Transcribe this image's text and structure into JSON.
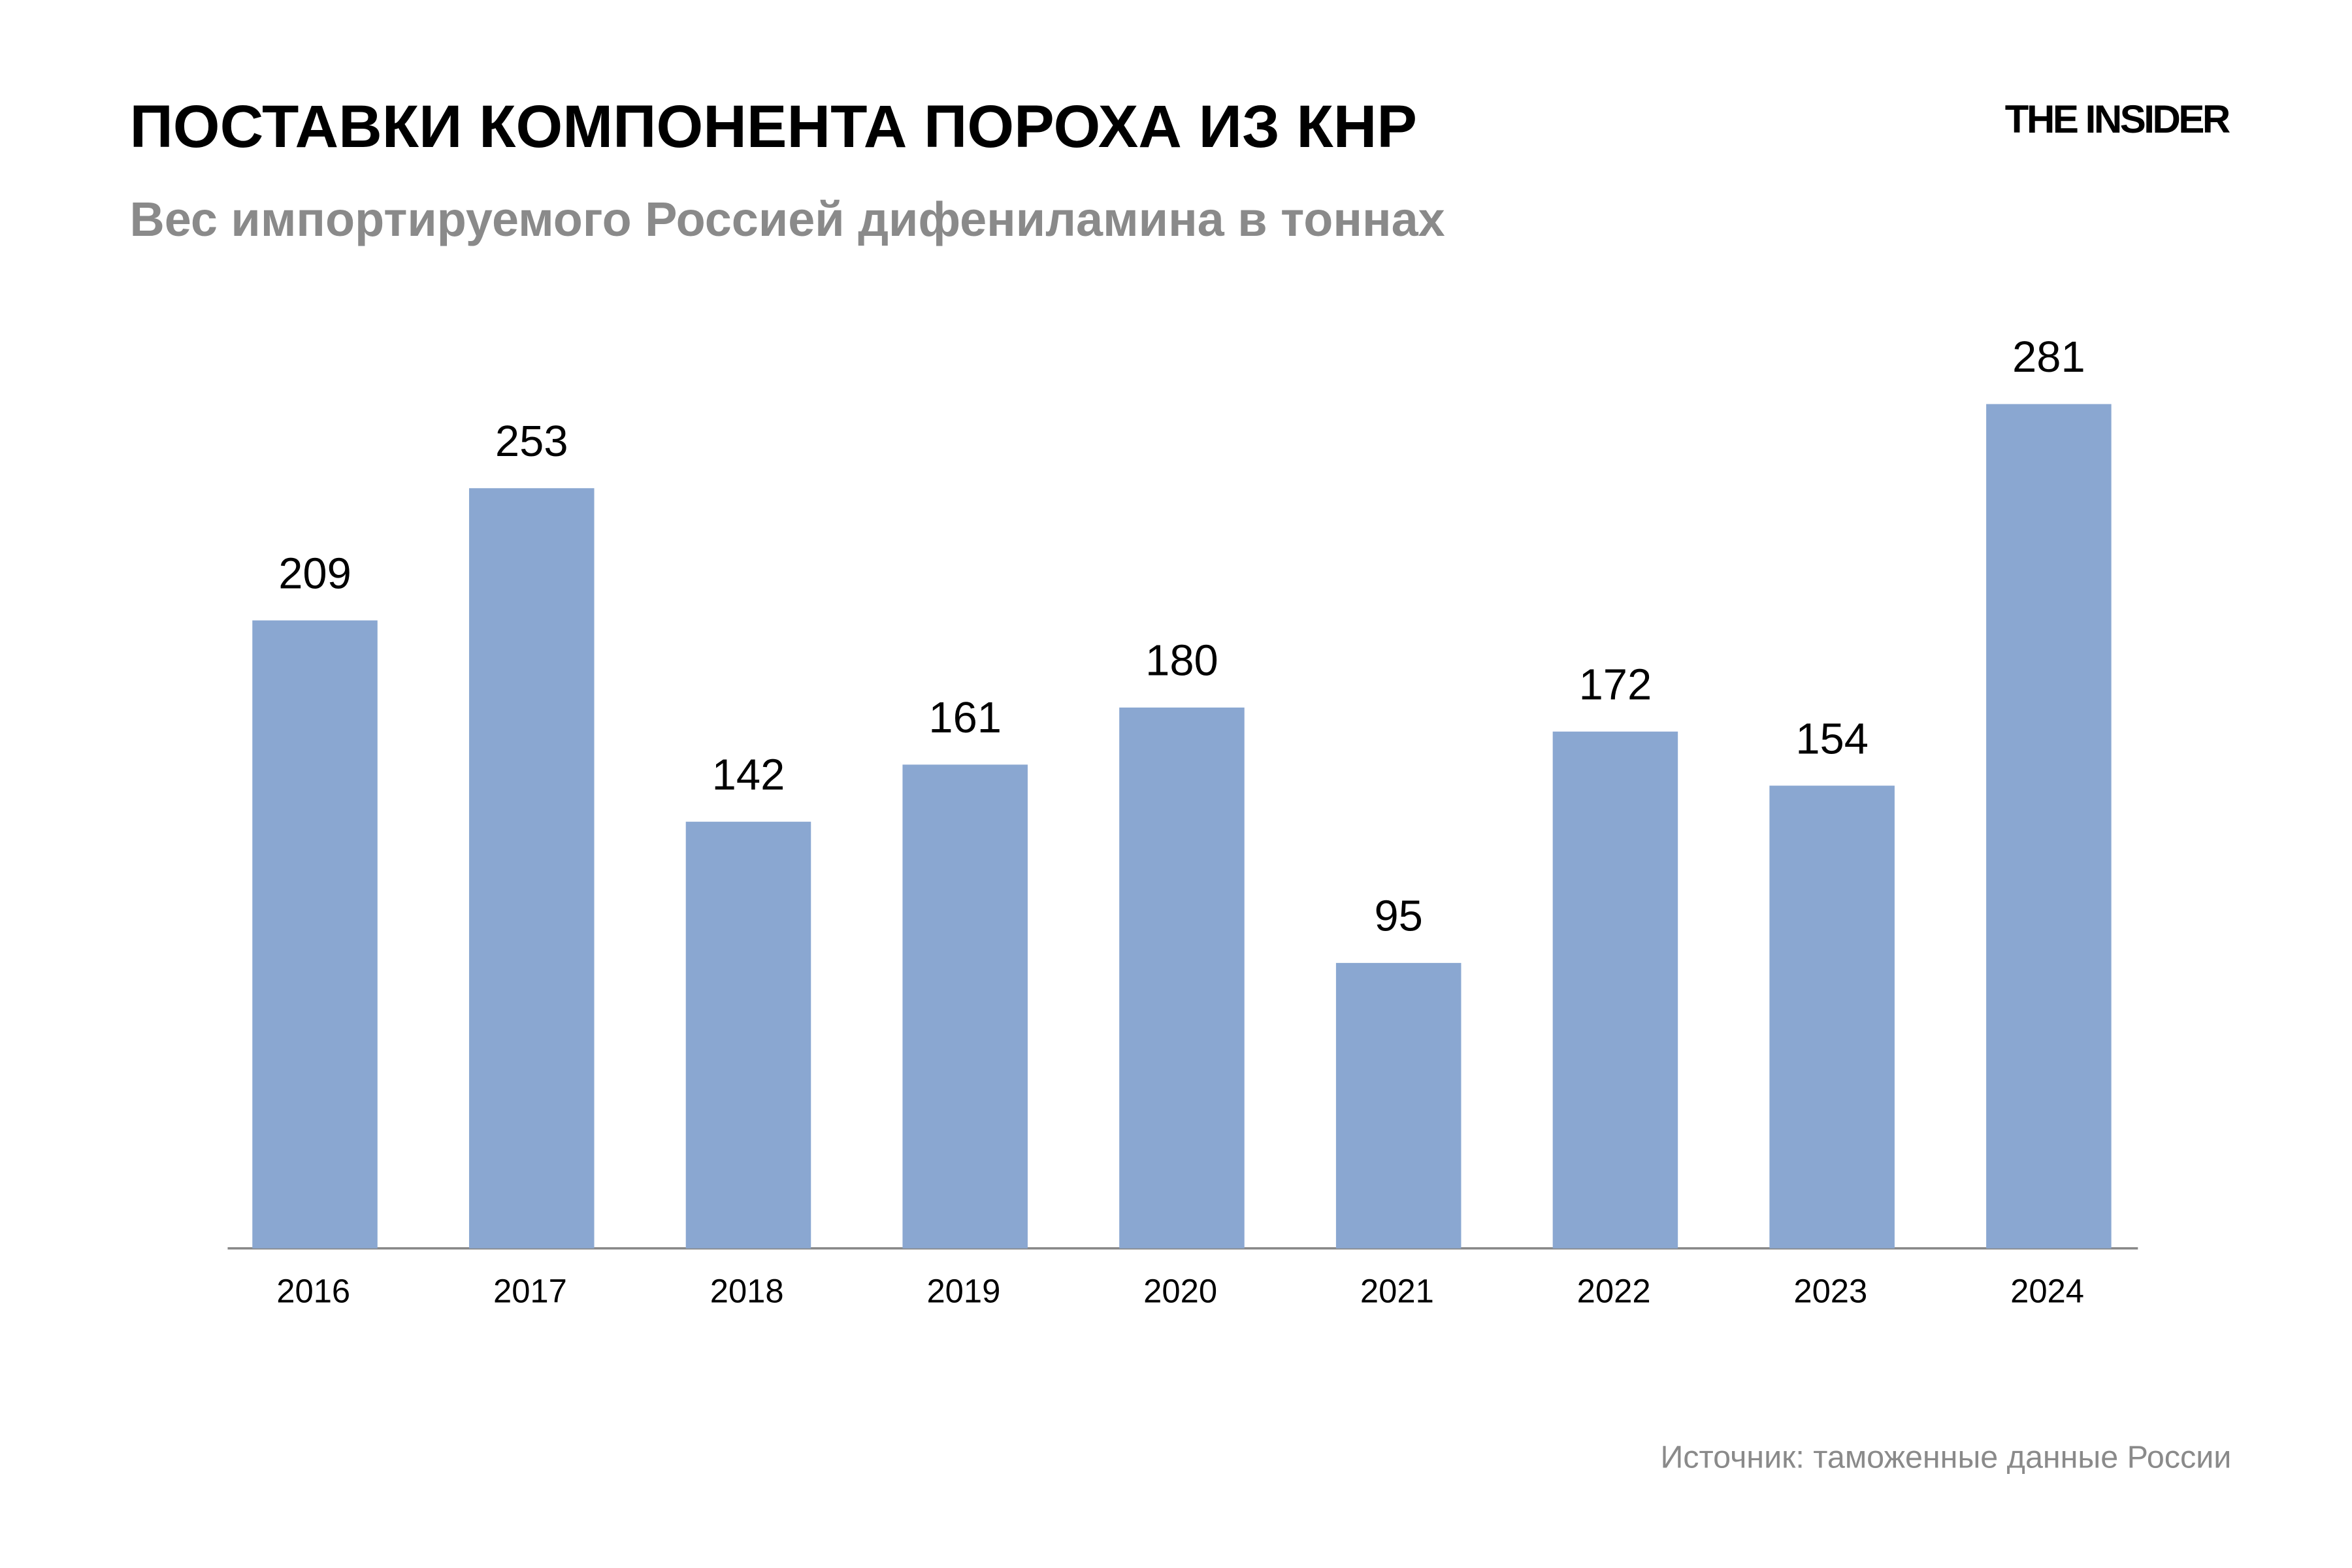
{
  "chart_data": {
    "type": "bar",
    "title": "ПОСТАВКИ КОМПОНЕНТА ПОРОХА ИЗ КНР",
    "subtitle": "Вес импортируемого Россией дифениламина в тоннах",
    "logo": "THE INSIDER",
    "source": "Источник: таможенные данные России",
    "categories": [
      "2016",
      "2017",
      "2018",
      "2019",
      "2020",
      "2021",
      "2022",
      "2023",
      "2024"
    ],
    "values": [
      209,
      253,
      142,
      161,
      180,
      95,
      172,
      154,
      281
    ],
    "color": "#8aa7d1"
  }
}
